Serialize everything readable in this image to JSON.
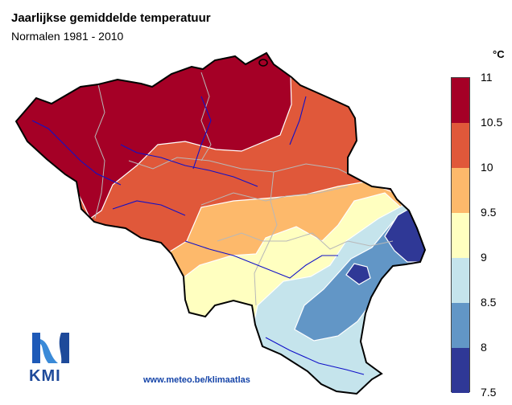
{
  "title": "Jaarlijkse gemiddelde temperatuur",
  "subtitle": "Normalen 1981 - 2010",
  "legend": {
    "unit": "°C",
    "ticks": [
      "11",
      "10.5",
      "10",
      "9.5",
      "9",
      "8.5",
      "8",
      "7.5"
    ],
    "classes": [
      {
        "range": "10.5-11",
        "color": "#a50026"
      },
      {
        "range": "10-10.5",
        "color": "#e0583a"
      },
      {
        "range": "9.5-10",
        "color": "#fdb96b"
      },
      {
        "range": "9-9.5",
        "color": "#ffffc0"
      },
      {
        "range": "8.5-9",
        "color": "#c5e4ec"
      },
      {
        "range": "8-8.5",
        "color": "#6296c6"
      },
      {
        "range": "7.5-8",
        "color": "#2f3896"
      }
    ]
  },
  "logo": {
    "text": "KMI",
    "icon": "kmi-logo-icon"
  },
  "url": "www.meteo.be/klimaatlas"
}
